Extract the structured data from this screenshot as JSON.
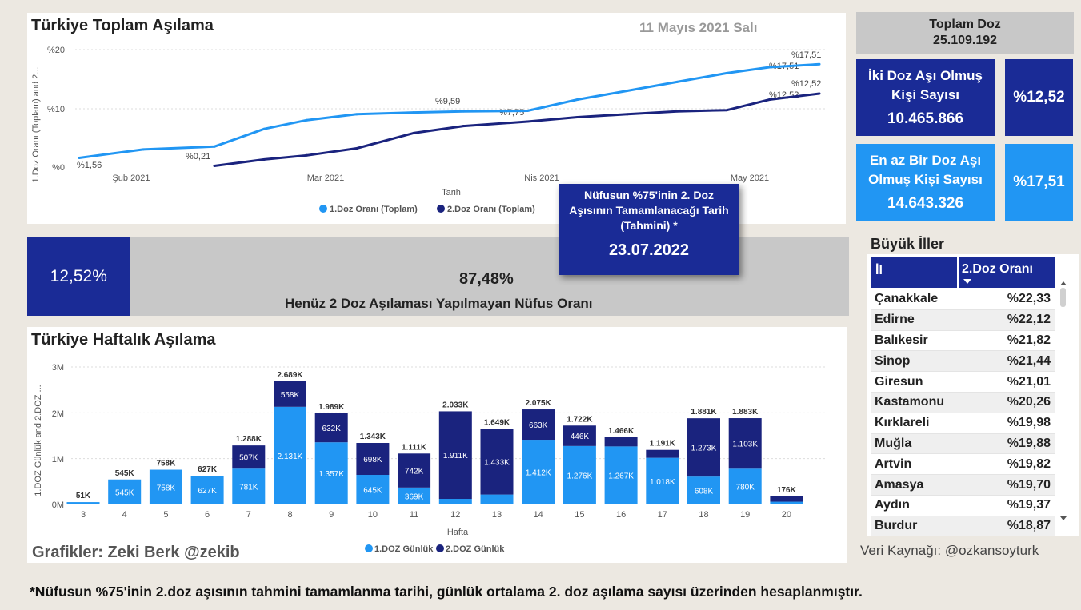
{
  "total_chart": {
    "title": "Türkiye Toplam Aşılama",
    "date": "11 Mayıs 2021 Salı",
    "y_axis_label": "1.Doz Oranı (Toplam) and 2...",
    "x_axis_label": "Tarih",
    "y_ticks": [
      "%20",
      "%10",
      "%0"
    ],
    "x_ticks": [
      "Şub 2021",
      "Mar 2021",
      "Nis 2021",
      "May 2021"
    ],
    "legend": [
      "1.Doz Oranı (Toplam)",
      "2.Doz Oranı (Toplam)"
    ],
    "labels": [
      "%1,56",
      "%9,59",
      "%17,51",
      "%17,51",
      "%0,21",
      "%7,75",
      "%12,52",
      "%12,52"
    ],
    "colors": {
      "dose1": "#2196F3",
      "dose2": "#1A237E"
    }
  },
  "chart_data": [
    {
      "type": "line",
      "title": "Türkiye Toplam Aşılama",
      "xlabel": "Tarih",
      "ylabel": "1.Doz Oranı (Toplam) and 2...",
      "ylim": [
        0,
        20
      ],
      "x": [
        "2021-01-27",
        "2021-02-05",
        "2021-02-15",
        "2021-02-22",
        "2021-02-28",
        "2021-03-07",
        "2021-03-15",
        "2021-03-22",
        "2021-03-31",
        "2021-04-07",
        "2021-04-14",
        "2021-04-21",
        "2021-04-28",
        "2021-05-04",
        "2021-05-11"
      ],
      "series": [
        {
          "name": "1.Doz Oranı (Toplam)",
          "values": [
            1.56,
            3.0,
            3.5,
            6.5,
            8.0,
            9.0,
            9.3,
            9.5,
            9.59,
            11.5,
            13.0,
            14.5,
            16.0,
            17.0,
            17.51
          ]
        },
        {
          "name": "2.Doz Oranı (Toplam)",
          "values": [
            null,
            null,
            0.21,
            1.3,
            2.0,
            3.2,
            5.8,
            7.0,
            7.75,
            8.5,
            9.0,
            9.5,
            9.7,
            11.5,
            12.52
          ]
        }
      ]
    },
    {
      "type": "bar",
      "title": "Türkiye Haftalık Aşılama",
      "xlabel": "Hafta",
      "ylabel": "1.DOZ Günlük and 2.DOZ ...",
      "ylim": [
        0,
        3000
      ],
      "categories": [
        "3",
        "4",
        "5",
        "6",
        "7",
        "8",
        "9",
        "10",
        "11",
        "12",
        "13",
        "14",
        "15",
        "16",
        "17",
        "18",
        "19",
        "20"
      ],
      "series": [
        {
          "name": "1.DOZ Günlük",
          "values": [
            51,
            545,
            758,
            627,
            781,
            2131,
            1357,
            645,
            369,
            122,
            216,
            1412,
            1276,
            1267,
            1018,
            608,
            780,
            60
          ]
        },
        {
          "name": "2.DOZ Günlük",
          "values": [
            0,
            0,
            0,
            0,
            507,
            558,
            632,
            698,
            742,
            1911,
            1433,
            663,
            446,
            199,
            173,
            1273,
            1103,
            116
          ]
        }
      ],
      "totals": [
        "51K",
        "545K",
        "758K",
        "627K",
        "1.288K",
        "2.689K",
        "1.989K",
        "1.343K",
        "1.111K",
        "2.033K",
        "1.649K",
        "2.075K",
        "1.722K",
        "1.466K",
        "1.191K",
        "1.881K",
        "1.883K",
        "176K"
      ],
      "seg1_labels": [
        "",
        "545K",
        "758K",
        "627K",
        "781K",
        "2.131K",
        "1.357K",
        "645K",
        "369K",
        "",
        "",
        "1.412K",
        "1.276K",
        "1.267K",
        "1.018K",
        "608K",
        "780K",
        ""
      ],
      "seg2_labels": [
        "",
        "",
        "",
        "",
        "507K",
        "558K",
        "632K",
        "698K",
        "742K",
        "1.911K",
        "1.433K",
        "663K",
        "446K",
        "",
        "",
        "1.273K",
        "1.103K",
        ""
      ]
    }
  ],
  "weekly_chart": {
    "title": "Türkiye Haftalık Aşılama",
    "y_axis_label": "1.DOZ Günlük and 2.DOZ ...",
    "x_axis_label": "Hafta",
    "y_ticks": [
      "3M",
      "2M",
      "1M",
      "0M"
    ],
    "legend": [
      "1.DOZ Günlük",
      "2.DOZ Günlük"
    ],
    "colors": {
      "dose1": "#2196F3",
      "dose2": "#1A237E"
    }
  },
  "credit": "Grafikler: Zeki Berk @zekib",
  "source": "Veri Kaynağı: @ozkansoyturk",
  "footnote": "*Nüfusun %75'inin 2.doz aşısının tahmini tamamlanma tarihi, günlük ortalama 2. doz aşılama sayısı üzerinden hesaplanmıştır.",
  "kpi": {
    "total_label": "Toplam Doz",
    "total_value": "25.109.192",
    "two_dose_label": "İki Doz Aşı Olmuş Kişi Sayısı",
    "two_dose_value": "10.465.866",
    "two_dose_pct": "%12,52",
    "one_dose_label": "En az Bir Doz Aşı Olmuş Kişi Sayısı",
    "one_dose_value": "14.643.326",
    "one_dose_pct": "%17,51"
  },
  "progress": {
    "done_pct": "12,52%",
    "remaining_pct": "87,48%",
    "remaining_label": "Henüz 2 Doz Aşılaması Yapılmayan Nüfus Oranı",
    "fraction_done": 0.1252
  },
  "tooltip": {
    "label": "Nüfusun %75'inin 2. Doz Aşısının Tamamlanacağı Tarih (Tahmini) *",
    "value": "23.07.2022"
  },
  "cities": {
    "title": "Büyük İller",
    "col_il": "İl",
    "col_rate": "2.Doz Oranı",
    "rows": [
      {
        "name": "Çanakkale",
        "rate": "%22,33"
      },
      {
        "name": "Edirne",
        "rate": "%22,12"
      },
      {
        "name": "Balıkesir",
        "rate": "%21,82"
      },
      {
        "name": "Sinop",
        "rate": "%21,44"
      },
      {
        "name": "Giresun",
        "rate": "%21,01"
      },
      {
        "name": "Kastamonu",
        "rate": "%20,26"
      },
      {
        "name": "Kırklareli",
        "rate": "%19,98"
      },
      {
        "name": "Muğla",
        "rate": "%19,88"
      },
      {
        "name": "Artvin",
        "rate": "%19,82"
      },
      {
        "name": "Amasya",
        "rate": "%19,70"
      },
      {
        "name": "Aydın",
        "rate": "%19,37"
      },
      {
        "name": "Burdur",
        "rate": "%18,87"
      }
    ]
  }
}
